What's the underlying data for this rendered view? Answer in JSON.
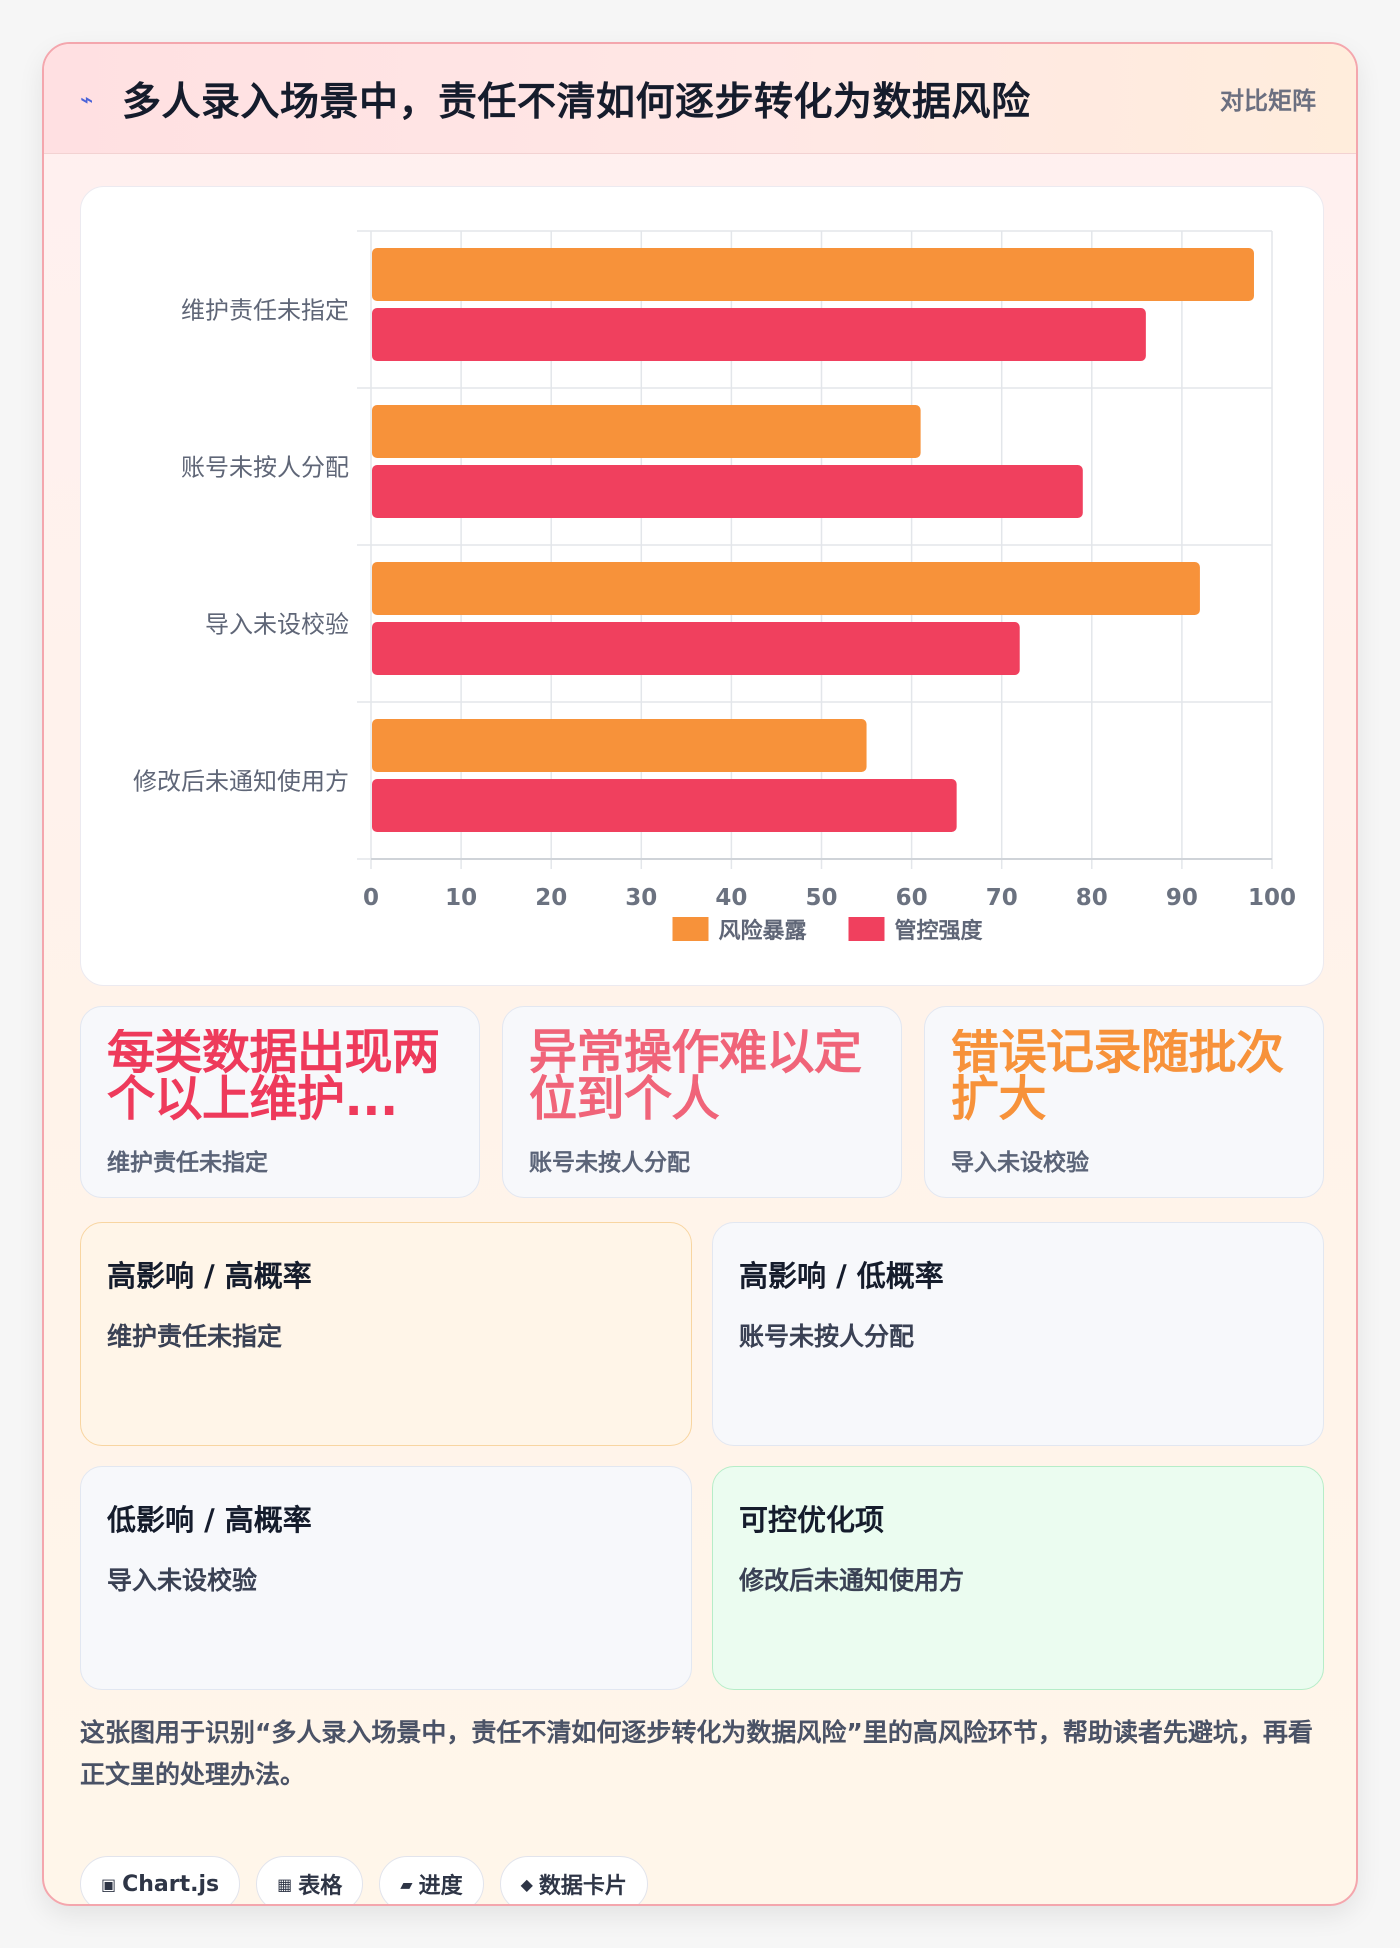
{
  "header": {
    "icon": "lightning-icon",
    "title": "多人录入场景中，责任不清如何逐步转化为数据风险",
    "tag": "对比矩阵"
  },
  "chart_data": {
    "type": "bar",
    "orientation": "horizontal",
    "categories": [
      "维护责任未指定",
      "账号未按人分配",
      "导入未设校验",
      "修改后未通知使用方"
    ],
    "series": [
      {
        "name": "风险暴露",
        "color": "#f7923a",
        "values": [
          98,
          61,
          92,
          55
        ]
      },
      {
        "name": "管控强度",
        "color": "#f0405e",
        "values": [
          86,
          79,
          72,
          65
        ]
      }
    ],
    "xlim": [
      0,
      100
    ],
    "xticks": [
      0,
      10,
      20,
      30,
      40,
      50,
      60,
      70,
      80,
      90,
      100
    ],
    "grid": true,
    "legend": "bottom",
    "title": "",
    "xlabel": "",
    "ylabel": ""
  },
  "stats": [
    {
      "value": "每类数据出现两个以上维护...",
      "label": "维护责任未指定",
      "color": "#ee3a5b"
    },
    {
      "value": "异常操作难以定位到个人",
      "label": "账号未按人分配",
      "color": "#f06479"
    },
    {
      "value": "错误记录随批次扩大",
      "label": "导入未设校验",
      "color": "#f7923a"
    }
  ],
  "quadrants": [
    {
      "title": "高影响 / 高概率",
      "item": "维护责任未指定"
    },
    {
      "title": "高影响 / 低概率",
      "item": "账号未按人分配"
    },
    {
      "title": "低影响 / 高概率",
      "item": "导入未设校验"
    },
    {
      "title": "可控优化项",
      "item": "修改后未通知使用方"
    }
  ],
  "description": "这张图用于识别“多人录入场景中，责任不清如何逐步转化为数据风险”里的高风险环节，帮助读者先避坑，再看正文里的处理办法。",
  "chips": [
    {
      "icon": "chart-icon",
      "glyph": "▣",
      "label": "Chart.js"
    },
    {
      "icon": "table-icon",
      "glyph": "▦",
      "label": "表格"
    },
    {
      "icon": "progress-icon",
      "glyph": "▰",
      "label": "进度"
    },
    {
      "icon": "card-icon",
      "glyph": "◆",
      "label": "数据卡片"
    }
  ]
}
